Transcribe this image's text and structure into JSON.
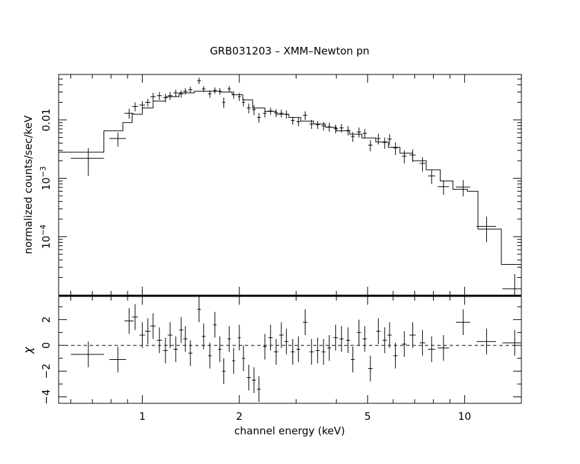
{
  "chart_data": [
    {
      "type": "scatter",
      "title": "GRB031203 – XMM–Newton pn",
      "ylabel": "normalized counts/sec/keV",
      "xlabel": "",
      "xscale": "log",
      "yscale": "log",
      "xlim": [
        0.55,
        15
      ],
      "ylim": [
        1e-05,
        0.06
      ],
      "xticks": [
        {
          "v": 1,
          "label": "1"
        },
        {
          "v": 2,
          "label": "2"
        },
        {
          "v": 5,
          "label": "5"
        },
        {
          "v": 10,
          "label": "10"
        }
      ],
      "yticks": [
        {
          "v": 0.01,
          "label": "0.01",
          "sup": ""
        },
        {
          "v": 0.001,
          "label": "10",
          "sup": "−3"
        },
        {
          "v": 0.0001,
          "label": "10",
          "sup": "−4"
        }
      ],
      "series": [
        {
          "kind": "data-with-errors",
          "points": [
            [
              0.68,
              0.0022,
              0.08,
              0.0011
            ],
            [
              0.84,
              0.0048,
              0.05,
              0.0013
            ],
            [
              0.91,
              0.013,
              0.03,
              0.0025
            ],
            [
              0.95,
              0.017,
              0.02,
              0.003
            ],
            [
              1.0,
              0.018,
              0.02,
              0.003
            ],
            [
              1.04,
              0.02,
              0.02,
              0.003
            ],
            [
              1.08,
              0.025,
              0.02,
              0.004
            ],
            [
              1.13,
              0.026,
              0.02,
              0.004
            ],
            [
              1.18,
              0.024,
              0.02,
              0.004
            ],
            [
              1.22,
              0.026,
              0.02,
              0.004
            ],
            [
              1.27,
              0.029,
              0.02,
              0.004
            ],
            [
              1.32,
              0.028,
              0.02,
              0.004
            ],
            [
              1.36,
              0.031,
              0.02,
              0.004
            ],
            [
              1.41,
              0.033,
              0.02,
              0.004
            ],
            [
              1.5,
              0.047,
              0.02,
              0.006
            ],
            [
              1.55,
              0.034,
              0.02,
              0.004
            ],
            [
              1.62,
              0.028,
              0.02,
              0.004
            ],
            [
              1.68,
              0.032,
              0.02,
              0.004
            ],
            [
              1.74,
              0.031,
              0.02,
              0.004
            ],
            [
              1.79,
              0.02,
              0.02,
              0.004
            ],
            [
              1.86,
              0.034,
              0.02,
              0.004
            ],
            [
              1.92,
              0.027,
              0.02,
              0.004
            ],
            [
              2.0,
              0.025,
              0.02,
              0.004
            ],
            [
              2.06,
              0.02,
              0.02,
              0.003
            ],
            [
              2.14,
              0.016,
              0.03,
              0.003
            ],
            [
              2.22,
              0.015,
              0.03,
              0.003
            ],
            [
              2.3,
              0.011,
              0.03,
              0.002
            ],
            [
              2.4,
              0.013,
              0.03,
              0.002
            ],
            [
              2.5,
              0.0142,
              0.04,
              0.002
            ],
            [
              2.6,
              0.0132,
              0.04,
              0.002
            ],
            [
              2.7,
              0.013,
              0.04,
              0.002
            ],
            [
              2.8,
              0.0125,
              0.04,
              0.002
            ],
            [
              2.93,
              0.0098,
              0.04,
              0.0015
            ],
            [
              3.05,
              0.0093,
              0.04,
              0.0015
            ],
            [
              3.2,
              0.012,
              0.05,
              0.002
            ],
            [
              3.35,
              0.0085,
              0.05,
              0.0015
            ],
            [
              3.5,
              0.0083,
              0.05,
              0.0013
            ],
            [
              3.65,
              0.0079,
              0.05,
              0.0013
            ],
            [
              3.8,
              0.0076,
              0.05,
              0.0013
            ],
            [
              3.98,
              0.0071,
              0.06,
              0.0012
            ],
            [
              4.15,
              0.0073,
              0.06,
              0.0012
            ],
            [
              4.35,
              0.0066,
              0.06,
              0.0012
            ],
            [
              4.5,
              0.0052,
              0.06,
              0.001
            ],
            [
              4.7,
              0.0062,
              0.07,
              0.0012
            ],
            [
              4.9,
              0.0059,
              0.07,
              0.0011
            ],
            [
              5.1,
              0.0037,
              0.08,
              0.0008
            ],
            [
              5.4,
              0.0048,
              0.08,
              0.001
            ],
            [
              5.65,
              0.0041,
              0.08,
              0.0009
            ],
            [
              5.85,
              0.0047,
              0.09,
              0.001
            ],
            [
              6.1,
              0.0033,
              0.09,
              0.0008
            ],
            [
              6.5,
              0.0024,
              0.1,
              0.0006
            ],
            [
              6.9,
              0.0025,
              0.15,
              0.0006
            ],
            [
              7.4,
              0.0018,
              0.15,
              0.0005
            ],
            [
              7.9,
              0.0011,
              0.2,
              0.0003
            ],
            [
              8.6,
              0.00072,
              0.35,
              0.0002
            ],
            [
              9.9,
              0.00071,
              0.5,
              0.00022
            ],
            [
              11.7,
              0.00015,
              0.8,
              7e-05
            ],
            [
              14.3,
              1.28e-05,
              1.2,
              1e-05
            ]
          ]
        },
        {
          "kind": "model-step",
          "steps": [
            [
              0.55,
              0.76,
              0.0028
            ],
            [
              0.76,
              0.87,
              0.0065
            ],
            [
              0.87,
              0.93,
              0.009
            ],
            [
              0.93,
              1.0,
              0.0125
            ],
            [
              1.0,
              1.08,
              0.016
            ],
            [
              1.08,
              1.18,
              0.021
            ],
            [
              1.18,
              1.3,
              0.025
            ],
            [
              1.3,
              1.45,
              0.029
            ],
            [
              1.45,
              1.6,
              0.031
            ],
            [
              1.6,
              1.75,
              0.031
            ],
            [
              1.75,
              1.9,
              0.03
            ],
            [
              1.9,
              2.05,
              0.027
            ],
            [
              2.05,
              2.2,
              0.022
            ],
            [
              2.2,
              2.4,
              0.016
            ],
            [
              2.4,
              2.6,
              0.014
            ],
            [
              2.6,
              2.85,
              0.0125
            ],
            [
              2.85,
              3.1,
              0.011
            ],
            [
              3.1,
              3.4,
              0.0095
            ],
            [
              3.4,
              3.7,
              0.0085
            ],
            [
              3.7,
              4.0,
              0.0075
            ],
            [
              4.0,
              4.4,
              0.0065
            ],
            [
              4.4,
              4.8,
              0.0057
            ],
            [
              4.8,
              5.3,
              0.0049
            ],
            [
              5.3,
              5.8,
              0.0042
            ],
            [
              5.8,
              6.3,
              0.0034
            ],
            [
              6.3,
              6.9,
              0.0027
            ],
            [
              6.9,
              7.6,
              0.002
            ],
            [
              7.6,
              8.4,
              0.0014
            ],
            [
              8.4,
              9.2,
              0.0009
            ],
            [
              9.2,
              10.2,
              0.00065
            ],
            [
              10.2,
              11.0,
              0.0006
            ],
            [
              11.0,
              13.0,
              0.000135
            ],
            [
              13.0,
              15.0,
              3.35e-05
            ]
          ]
        }
      ]
    },
    {
      "type": "scatter",
      "title": "",
      "xlabel": "channel energy (keV)",
      "ylabel": "χ",
      "xscale": "log",
      "xlim": [
        0.55,
        15
      ],
      "ylim": [
        -4.5,
        3.8
      ],
      "xticks": [
        {
          "v": 1,
          "label": "1"
        },
        {
          "v": 2,
          "label": "2"
        },
        {
          "v": 5,
          "label": "5"
        },
        {
          "v": 10,
          "label": "10"
        }
      ],
      "yticks": [
        {
          "v": 2,
          "label": "2"
        },
        {
          "v": 0,
          "label": "0"
        },
        {
          "v": -2,
          "label": "−2"
        },
        {
          "v": -4,
          "label": "−4"
        }
      ],
      "reference_line": 0,
      "series": [
        {
          "kind": "residuals",
          "points": [
            [
              0.68,
              -0.7,
              0.08
            ],
            [
              0.84,
              -1.1,
              0.05
            ],
            [
              0.91,
              1.9,
              0.03
            ],
            [
              0.95,
              2.2,
              0.02
            ],
            [
              1.0,
              0.8,
              0.02
            ],
            [
              1.04,
              1.1,
              0.02
            ],
            [
              1.08,
              1.5,
              0.02
            ],
            [
              1.13,
              0.4,
              0.02
            ],
            [
              1.18,
              -0.4,
              0.02
            ],
            [
              1.22,
              0.8,
              0.02
            ],
            [
              1.27,
              -0.3,
              0.02
            ],
            [
              1.32,
              1.2,
              0.02
            ],
            [
              1.36,
              0.5,
              0.02
            ],
            [
              1.41,
              -0.6,
              0.02
            ],
            [
              1.5,
              2.8,
              0.02
            ],
            [
              1.55,
              0.7,
              0.02
            ],
            [
              1.62,
              -0.8,
              0.02
            ],
            [
              1.68,
              1.6,
              0.02
            ],
            [
              1.74,
              -0.3,
              0.02
            ],
            [
              1.79,
              -2.0,
              0.02
            ],
            [
              1.86,
              0.5,
              0.02
            ],
            [
              1.92,
              -1.2,
              0.02
            ],
            [
              2.0,
              0.6,
              0.02
            ],
            [
              2.06,
              -1.0,
              0.02
            ],
            [
              2.14,
              -2.5,
              0.03
            ],
            [
              2.22,
              -2.7,
              0.03
            ],
            [
              2.3,
              -3.4,
              0.03
            ],
            [
              2.4,
              -0.1,
              0.03
            ],
            [
              2.5,
              0.6,
              0.04
            ],
            [
              2.6,
              -0.5,
              0.04
            ],
            [
              2.7,
              0.8,
              0.04
            ],
            [
              2.8,
              0.3,
              0.04
            ],
            [
              2.93,
              -0.5,
              0.04
            ],
            [
              3.05,
              -0.3,
              0.04
            ],
            [
              3.2,
              1.8,
              0.05
            ],
            [
              3.35,
              -0.5,
              0.05
            ],
            [
              3.5,
              -0.4,
              0.05
            ],
            [
              3.65,
              -0.5,
              0.05
            ],
            [
              3.8,
              -0.2,
              0.05
            ],
            [
              3.98,
              0.6,
              0.06
            ],
            [
              4.15,
              0.5,
              0.06
            ],
            [
              4.35,
              0.4,
              0.06
            ],
            [
              4.5,
              -1.1,
              0.06
            ],
            [
              4.7,
              1.0,
              0.07
            ],
            [
              4.9,
              0.5,
              0.07
            ],
            [
              5.1,
              -1.8,
              0.08
            ],
            [
              5.4,
              1.1,
              0.08
            ],
            [
              5.65,
              0.4,
              0.08
            ],
            [
              5.85,
              0.8,
              0.09
            ],
            [
              6.1,
              -0.8,
              0.09
            ],
            [
              6.5,
              0.1,
              0.1
            ],
            [
              6.9,
              0.8,
              0.15
            ],
            [
              7.4,
              0.2,
              0.15
            ],
            [
              7.9,
              -0.3,
              0.2
            ],
            [
              8.6,
              -0.2,
              0.35
            ],
            [
              9.9,
              1.8,
              0.5
            ],
            [
              11.7,
              0.3,
              0.8
            ],
            [
              14.3,
              0.2,
              1.2
            ]
          ]
        }
      ]
    }
  ]
}
